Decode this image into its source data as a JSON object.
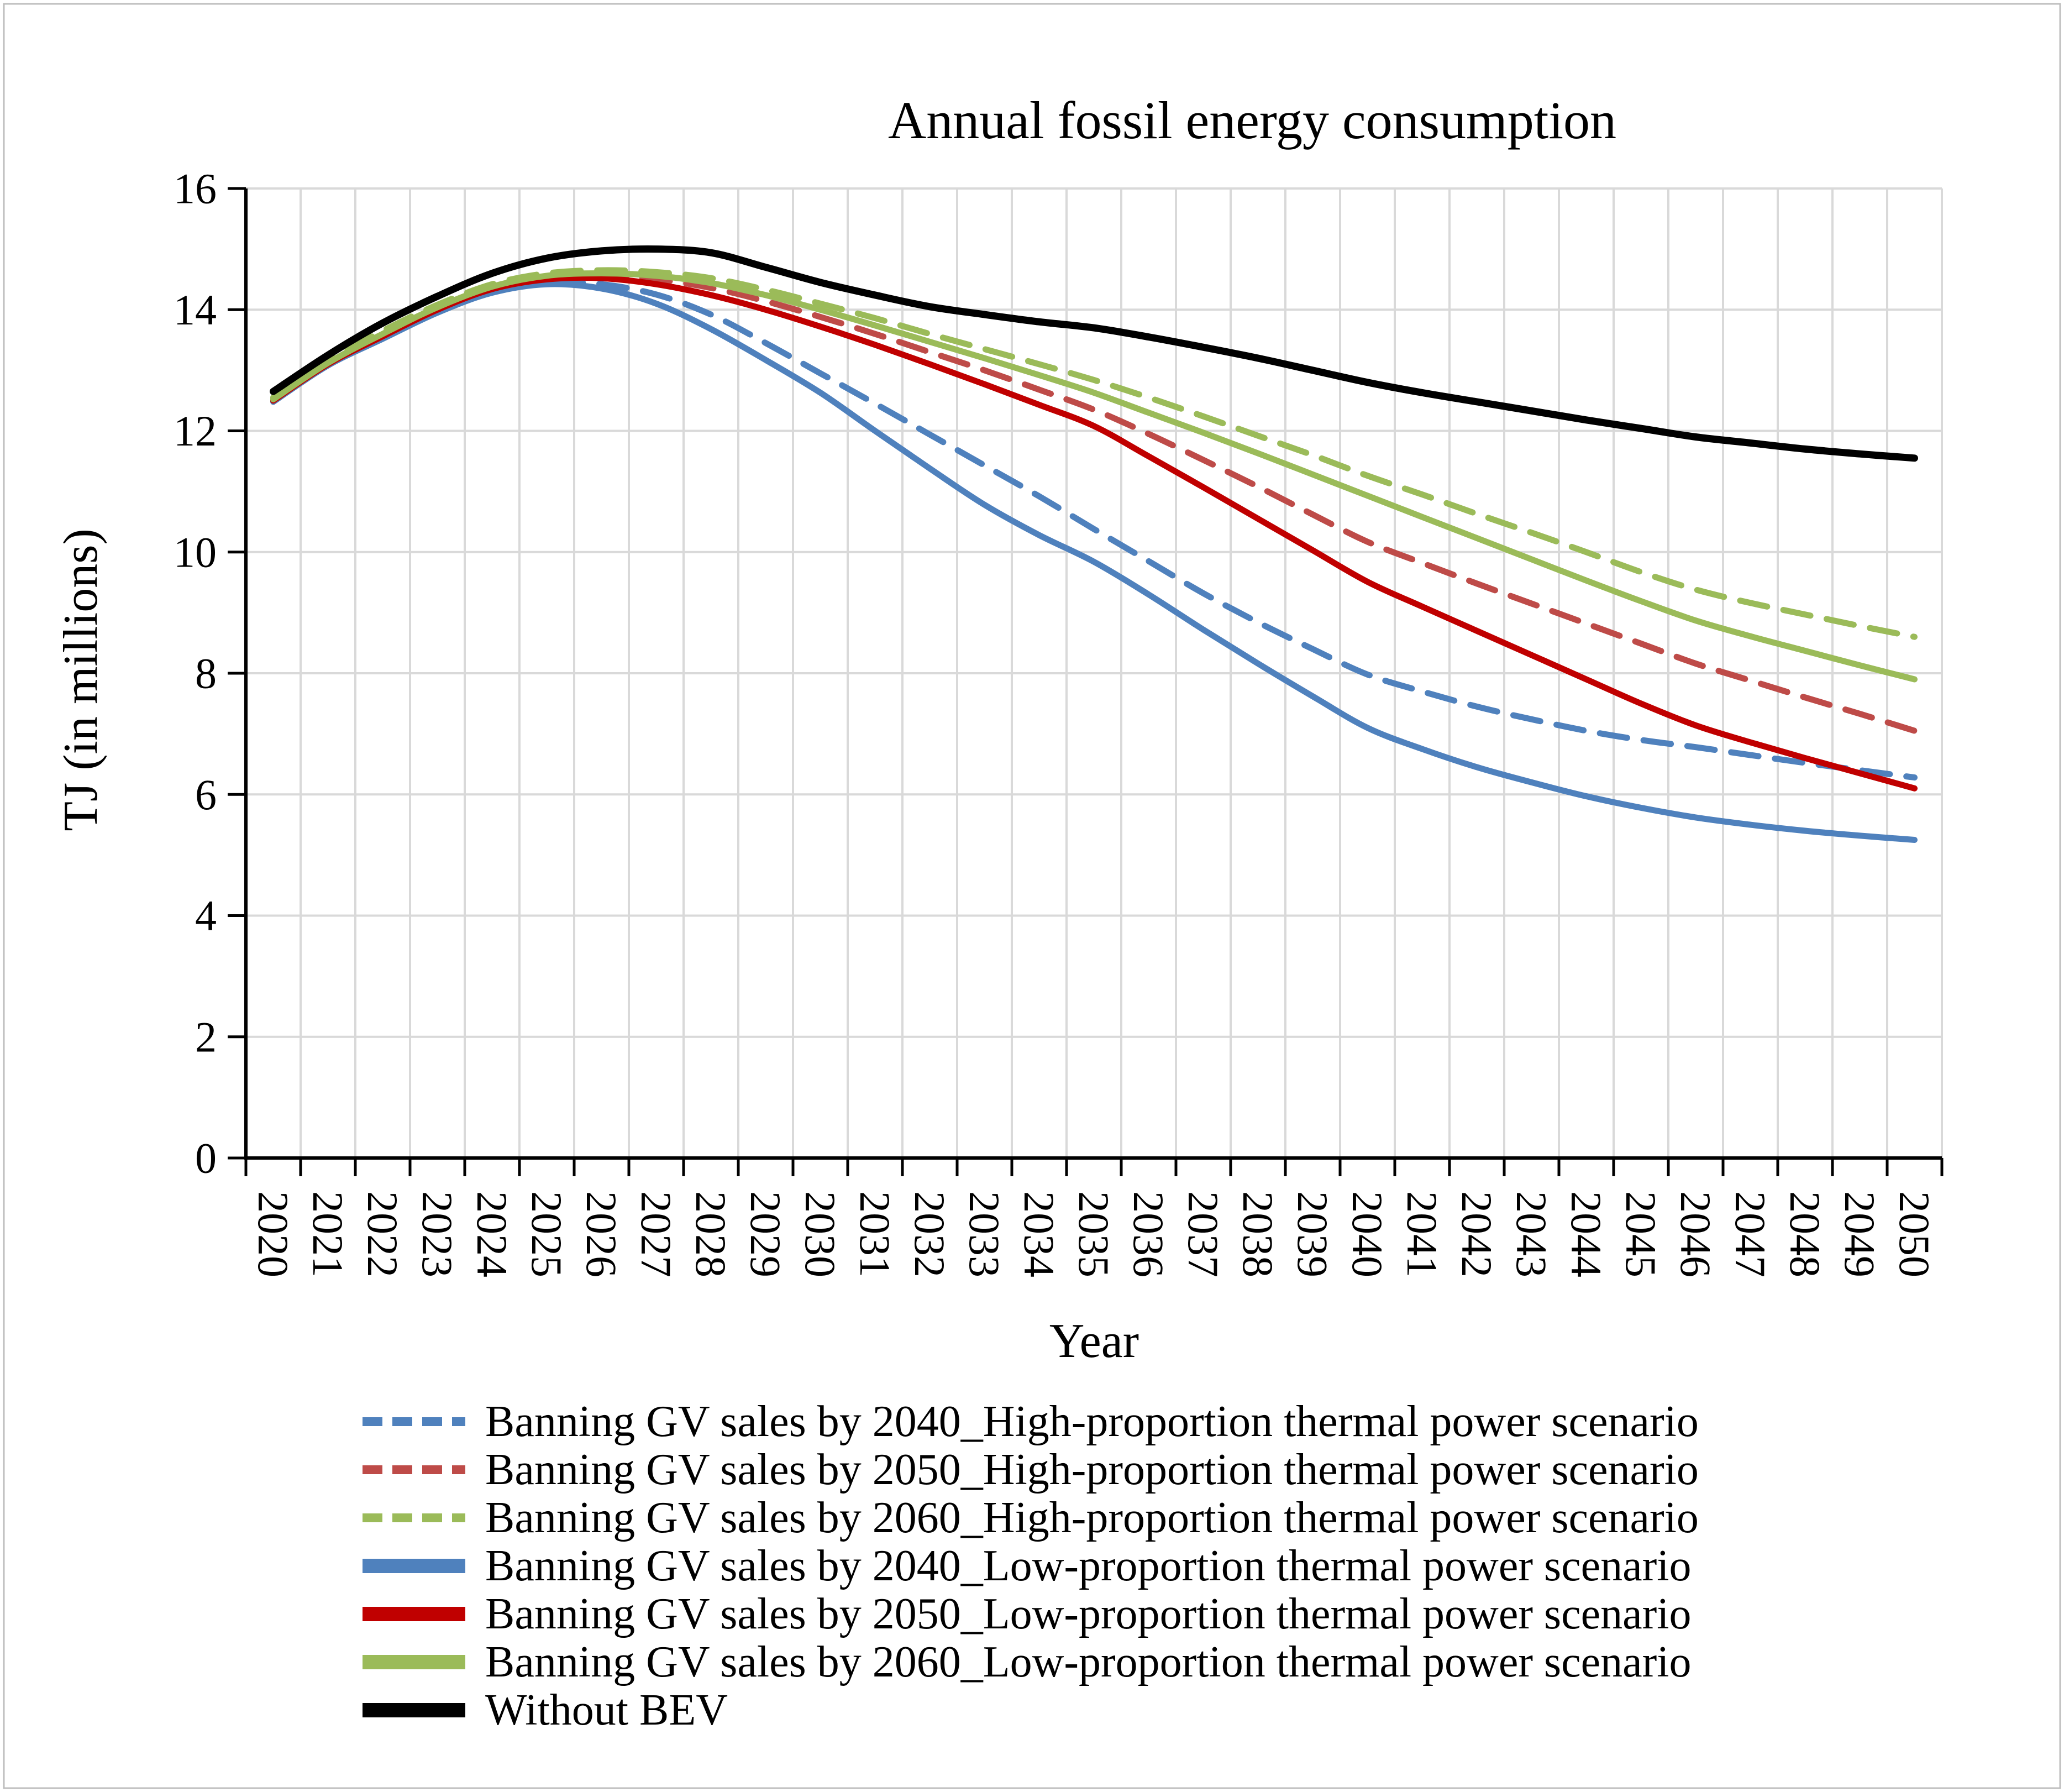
{
  "figure": {
    "background": "#FFFFFF",
    "border_color": "#BFBFBF"
  },
  "chart_data": {
    "type": "line",
    "title": "Annual fossil energy consumption",
    "xlabel": "Year",
    "ylabel": "TJ (in millions)",
    "ylim": [
      0,
      16
    ],
    "y_ticks": [
      0,
      2,
      4,
      6,
      8,
      10,
      12,
      14,
      16
    ],
    "grid": true,
    "gridline_color": "#D9D9D9",
    "axis_color": "#000000",
    "legend_position": "bottom-left",
    "x": [
      2020,
      2021,
      2022,
      2023,
      2024,
      2025,
      2026,
      2027,
      2028,
      2029,
      2030,
      2031,
      2032,
      2033,
      2034,
      2035,
      2036,
      2037,
      2038,
      2039,
      2040,
      2041,
      2042,
      2043,
      2044,
      2045,
      2046,
      2047,
      2048,
      2049,
      2050
    ],
    "series": [
      {
        "name": "Banning GV sales by 2040_High-proportion thermal power scenario",
        "color": "#4F81BD",
        "style": "dashed",
        "values": [
          12.5,
          13.1,
          13.55,
          13.98,
          14.3,
          14.45,
          14.42,
          14.25,
          13.92,
          13.45,
          12.95,
          12.45,
          11.94,
          11.43,
          10.92,
          10.38,
          9.85,
          9.32,
          8.84,
          8.4,
          7.98,
          7.7,
          7.45,
          7.24,
          7.05,
          6.9,
          6.78,
          6.65,
          6.52,
          6.4,
          6.28
        ]
      },
      {
        "name": "Banning GV sales by 2050_High-proportion thermal power scenario",
        "color": "#BE4B48",
        "style": "dashed",
        "values": [
          12.52,
          13.12,
          13.58,
          14.02,
          14.36,
          14.53,
          14.56,
          14.5,
          14.36,
          14.14,
          13.88,
          13.6,
          13.3,
          13.0,
          12.68,
          12.35,
          11.95,
          11.52,
          11.08,
          10.62,
          10.17,
          9.82,
          9.48,
          9.15,
          8.82,
          8.49,
          8.16,
          7.88,
          7.6,
          7.33,
          7.05
        ]
      },
      {
        "name": "Banning GV sales by 2060_High-proportion thermal power scenario",
        "color": "#9BBB59",
        "style": "dashed",
        "values": [
          12.55,
          13.15,
          13.65,
          14.08,
          14.42,
          14.6,
          14.65,
          14.62,
          14.52,
          14.33,
          14.1,
          13.86,
          13.6,
          13.35,
          13.1,
          12.84,
          12.55,
          12.24,
          11.92,
          11.6,
          11.26,
          10.95,
          10.63,
          10.32,
          10.0,
          9.67,
          9.38,
          9.16,
          8.97,
          8.78,
          8.6
        ]
      },
      {
        "name": "Banning GV sales by 2040_Low-proportion thermal power scenario",
        "color": "#4F81BD",
        "style": "solid",
        "values": [
          12.48,
          13.08,
          13.52,
          13.95,
          14.28,
          14.42,
          14.35,
          14.1,
          13.68,
          13.17,
          12.63,
          12.0,
          11.38,
          10.78,
          10.28,
          9.84,
          9.3,
          8.72,
          8.16,
          7.62,
          7.1,
          6.75,
          6.45,
          6.2,
          5.97,
          5.78,
          5.62,
          5.5,
          5.4,
          5.32,
          5.25
        ]
      },
      {
        "name": "Banning GV sales by 2050_Low-proportion thermal power scenario",
        "color": "#C00000",
        "style": "solid",
        "values": [
          12.5,
          13.1,
          13.56,
          14.0,
          14.34,
          14.5,
          14.52,
          14.42,
          14.24,
          14.0,
          13.72,
          13.42,
          13.1,
          12.77,
          12.43,
          12.08,
          11.58,
          11.07,
          10.55,
          10.03,
          9.51,
          9.1,
          8.7,
          8.3,
          7.9,
          7.5,
          7.14,
          6.86,
          6.6,
          6.35,
          6.1
        ]
      },
      {
        "name": "Banning GV sales by 2060_Low-proportion thermal power scenario",
        "color": "#9BBB59",
        "style": "solid",
        "values": [
          12.52,
          13.12,
          13.6,
          14.04,
          14.38,
          14.56,
          14.6,
          14.56,
          14.44,
          14.24,
          14.0,
          13.74,
          13.47,
          13.2,
          12.92,
          12.63,
          12.3,
          11.97,
          11.63,
          11.28,
          10.93,
          10.58,
          10.23,
          9.88,
          9.53,
          9.19,
          8.87,
          8.61,
          8.37,
          8.13,
          7.9
        ]
      },
      {
        "name": "Without BEV",
        "color": "#000000",
        "style": "solid",
        "values": [
          12.65,
          13.25,
          13.78,
          14.22,
          14.6,
          14.85,
          14.97,
          15.0,
          14.94,
          14.7,
          14.45,
          14.24,
          14.05,
          13.92,
          13.8,
          13.7,
          13.55,
          13.38,
          13.2,
          13.0,
          12.8,
          12.63,
          12.48,
          12.33,
          12.18,
          12.04,
          11.9,
          11.8,
          11.7,
          11.62,
          11.55
        ]
      }
    ]
  }
}
